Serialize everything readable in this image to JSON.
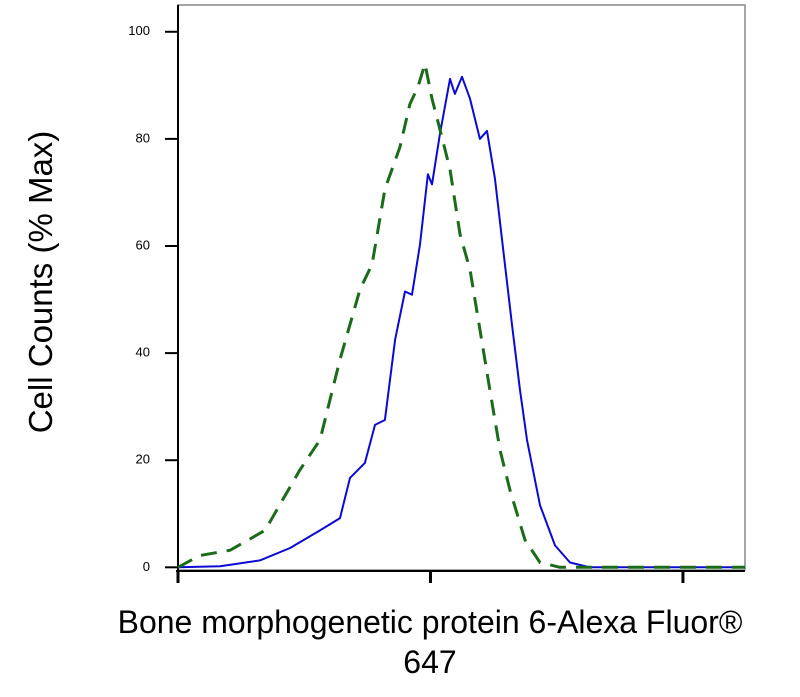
{
  "chart_data": {
    "type": "line",
    "ylabel": "Cell Counts (% Max)",
    "xlabel": "Bone morphogenetic protein 6-Alexa Fluor® 647",
    "xscale": "log",
    "xlim": [
      1,
      176.1
    ],
    "xticks": [
      1,
      10,
      100
    ],
    "ylim": [
      -0.5,
      105
    ],
    "yticks": [
      0,
      20,
      40,
      60,
      80,
      100
    ],
    "series": [
      {
        "color": "#0a0ad2",
        "dash": "solid",
        "x": [
          1,
          1.47,
          2.11,
          2.78,
          3.65,
          4.38,
          4.8,
          5.5,
          6.03,
          6.6,
          7.24,
          7.93,
          8.45,
          9.09,
          9.77,
          10.14,
          10.9,
          11.95,
          12.5,
          13.33,
          14.34,
          15.7,
          16.74,
          18.01,
          19.72,
          21.03,
          22.62,
          24.11,
          27.15,
          31.13,
          35.69,
          42.81,
          176.1
        ],
        "values": [
          0,
          0.2,
          1.3,
          3.6,
          6.9,
          9.2,
          16.7,
          19.5,
          26.6,
          27.5,
          42.5,
          51.5,
          50.9,
          60.3,
          73.4,
          71.5,
          80.9,
          91.2,
          88.4,
          91.6,
          87.5,
          80.0,
          81.5,
          72.5,
          56.6,
          45.3,
          33.1,
          23.8,
          11.6,
          4.1,
          0.9,
          0,
          0
        ]
      },
      {
        "color": "#1a6b1a",
        "dash": "dashed",
        "x": [
          1,
          1.22,
          1.61,
          2.21,
          3.04,
          3.65,
          4.38,
          5.26,
          5.87,
          6.6,
          7.57,
          8.29,
          8.92,
          9.51,
          10.14,
          10.9,
          11.95,
          13.09,
          14.34,
          15.7,
          17.2,
          18.85,
          20.65,
          23.67,
          27.15,
          32.58,
          176.1
        ],
        "values": [
          0,
          2.2,
          3.2,
          6.9,
          18.2,
          23.8,
          38.8,
          51.9,
          56.6,
          70.6,
          78.5,
          86.5,
          89.7,
          94.0,
          87.5,
          81.8,
          74.3,
          62.2,
          55.6,
          44.4,
          33.1,
          21.9,
          14.4,
          5.1,
          0.9,
          0,
          0
        ]
      }
    ]
  }
}
